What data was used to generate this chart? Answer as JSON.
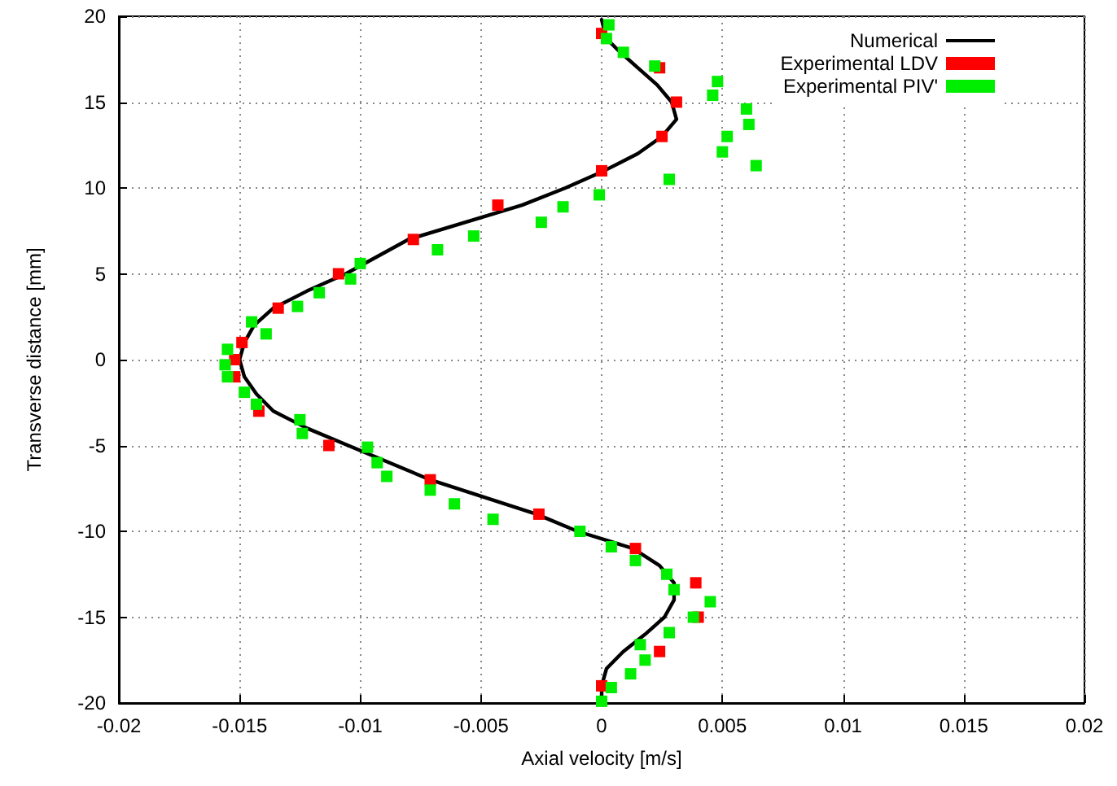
{
  "chart_data": {
    "type": "scatter",
    "xlabel": "Axial velocity [m/s]",
    "ylabel": "Transverse distance [mm]",
    "xlim": [
      -0.02,
      0.02
    ],
    "ylim": [
      -20,
      20
    ],
    "xticks": [
      -0.02,
      -0.015,
      -0.01,
      -0.005,
      0,
      0.005,
      0.01,
      0.015,
      0.02
    ],
    "yticks": [
      -20,
      -15,
      -10,
      -5,
      0,
      5,
      10,
      15,
      20
    ],
    "grid": true,
    "legend": "top right",
    "series": [
      {
        "name": "Numerical",
        "type": "line",
        "marker": "none",
        "line_style": "solid",
        "color": "#000000",
        "x": [
          0,
          0.0002,
          0.0007,
          0.0015,
          0.0023,
          0.0029,
          0.0031,
          0.0025,
          0.0015,
          0.0001,
          -0.0015,
          -0.0033,
          -0.008,
          -0.0106,
          -0.0122,
          -0.0136,
          -0.0144,
          -0.0148,
          -0.015,
          -0.0148,
          -0.0143,
          -0.0136,
          -0.0122,
          -0.0105,
          -0.0071,
          -0.0027,
          -0.001,
          0.0013,
          0.0024,
          0.003,
          0.003,
          0.0026,
          0.0018,
          0.0009,
          0.0002,
          0,
          0
        ],
        "values": [
          19.8,
          18.7,
          18,
          17,
          16,
          15,
          14,
          13,
          12,
          11,
          10,
          9,
          7,
          5,
          4,
          3,
          2,
          1,
          0,
          -1,
          -2,
          -3,
          -4,
          -5,
          -7,
          -9,
          -10,
          -11,
          -12,
          -13,
          -14,
          -15,
          -16,
          -17,
          -18,
          -19,
          -20
        ]
      },
      {
        "name": "Experimental LDV",
        "marker": "square",
        "color": "#ff0000",
        "x": [
          0,
          0.0024,
          0.0031,
          0.0025,
          0,
          -0.0043,
          -0.0078,
          -0.0109,
          -0.0134,
          -0.0149,
          -0.0152,
          -0.0152,
          -0.0142,
          -0.0113,
          -0.0071,
          -0.0026,
          0.0014,
          0.0039,
          0.004,
          0.0024,
          0
        ],
        "values": [
          19,
          17,
          15,
          13,
          11,
          9,
          7,
          5,
          3,
          1,
          0,
          -1,
          -3,
          -5,
          -7,
          -9,
          -11,
          -13,
          -15,
          -17,
          -19
        ]
      },
      {
        "name": "Experimental PIV'",
        "marker": "square",
        "color": "#00ee00",
        "x": [
          0.0003,
          0.0002,
          0.0009,
          0.0022,
          0.0048,
          0.0046,
          0.006,
          0.0061,
          0.0052,
          0.005,
          0.0064,
          0.0028,
          -0.0001,
          -0.0016,
          -0.0025,
          -0.0053,
          -0.0068,
          -0.01,
          -0.0104,
          -0.0117,
          -0.0126,
          -0.0145,
          -0.0139,
          -0.0155,
          -0.0156,
          -0.0155,
          -0.0148,
          -0.0143,
          -0.0125,
          -0.0124,
          -0.0097,
          -0.0093,
          -0.0089,
          -0.0071,
          -0.0061,
          -0.0045,
          -0.0009,
          0.0004,
          0.0014,
          0.0027,
          0.003,
          0.0045,
          0.0038,
          0.0028,
          0.0016,
          0.0018,
          0.0012,
          0.0004,
          0
        ],
        "values": [
          19.5,
          18.7,
          17.9,
          17.1,
          16.2,
          15.4,
          14.6,
          13.7,
          13,
          12.1,
          11.3,
          10.5,
          9.6,
          8.9,
          8,
          7.2,
          6.4,
          5.6,
          4.7,
          3.9,
          3.1,
          2.2,
          1.5,
          0.6,
          -0.3,
          -1,
          -1.9,
          -2.6,
          -3.5,
          -4.3,
          -5.1,
          -6,
          -6.8,
          -7.6,
          -8.4,
          -9.3,
          -10,
          -10.9,
          -11.7,
          -12.5,
          -13.4,
          -14.1,
          -15,
          -15.9,
          -16.6,
          -17.5,
          -18.3,
          -19.1,
          -19.9
        ]
      }
    ]
  }
}
